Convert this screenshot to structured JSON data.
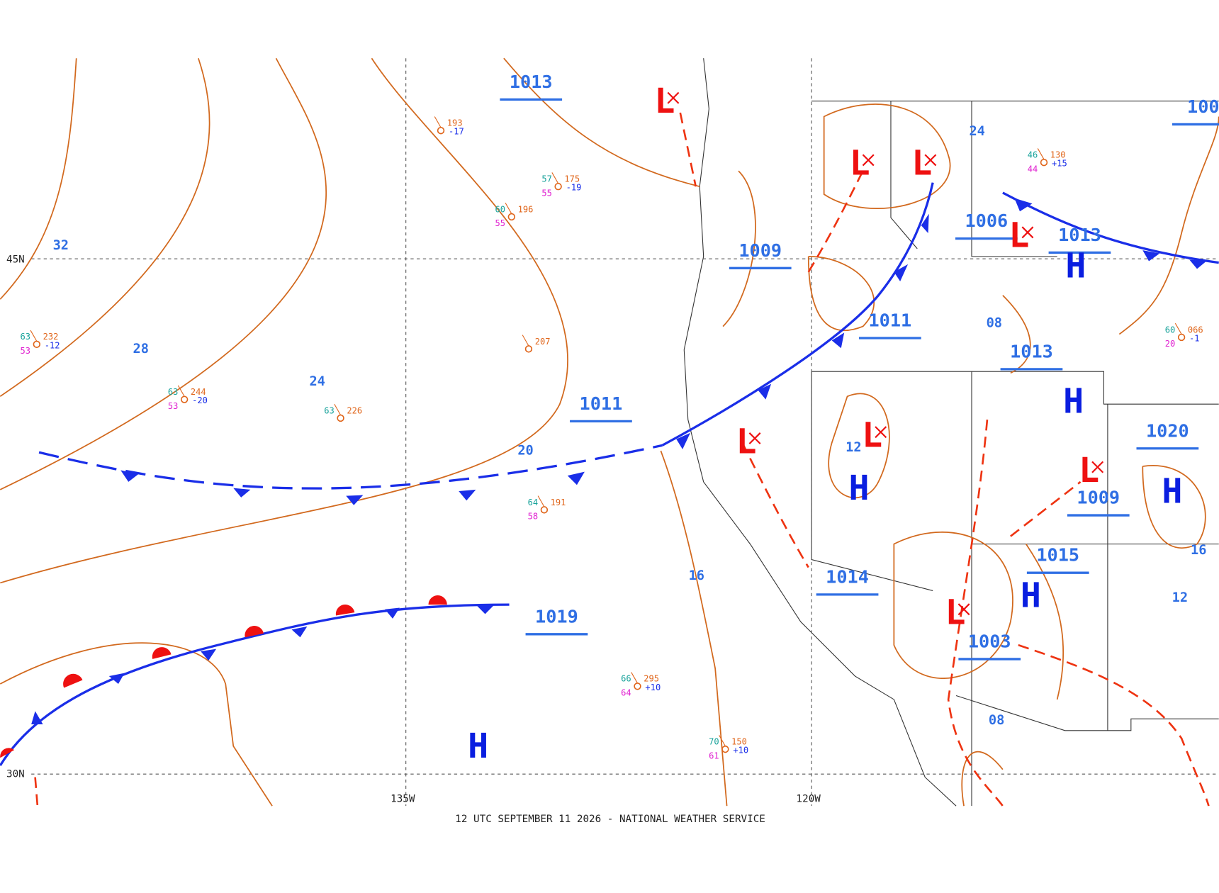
{
  "map": {
    "footer": "12 UTC SEPTEMBER 11 2026 - NATIONAL WEATHER SERVICE",
    "grid_labels": [
      "45N",
      "30N",
      "135W",
      "120W"
    ],
    "isobar_labels": [
      1013,
      1011,
      1019,
      1009,
      1011,
      1006,
      1013,
      1013,
      1014,
      1015,
      1003,
      1020,
      1009,
      "100"
    ],
    "highs": [
      "H",
      "H",
      "H",
      "H",
      "H",
      "H"
    ],
    "lows": [
      "L",
      "L",
      "L",
      "L",
      "L",
      "L",
      "L",
      "L"
    ],
    "dewpoint_labels": [
      "32",
      "28",
      "24",
      "20",
      "16",
      "12",
      "24",
      "08",
      "08",
      "16",
      "12"
    ],
    "stations": [
      {
        "temp": "63",
        "pressure": "232",
        "dew": "53",
        "change": "-12"
      },
      {
        "temp": "63",
        "pressure": "244",
        "dew": "53",
        "change": "-20"
      },
      {
        "temp": "63",
        "pressure": "226"
      },
      {
        "pressure": "193",
        "change": "-17"
      },
      {
        "temp": "57",
        "pressure": "175",
        "dew": "55",
        "change": "-19"
      },
      {
        "temp": "60",
        "pressure": "196",
        "dew": "55"
      },
      {
        "pressure": "207"
      },
      {
        "temp": "64",
        "pressure": "191",
        "dew": "58"
      },
      {
        "temp": "66",
        "pressure": "295",
        "dew": "64",
        "change": "+10"
      },
      {
        "temp": "70",
        "pressure": "150",
        "dew": "61",
        "change": "+10"
      },
      {
        "temp": "46",
        "pressure": "130",
        "dew": "44",
        "change": "+15"
      },
      {
        "temp": "60",
        "pressure": "066",
        "dew": "20",
        "change": "-1"
      }
    ]
  }
}
